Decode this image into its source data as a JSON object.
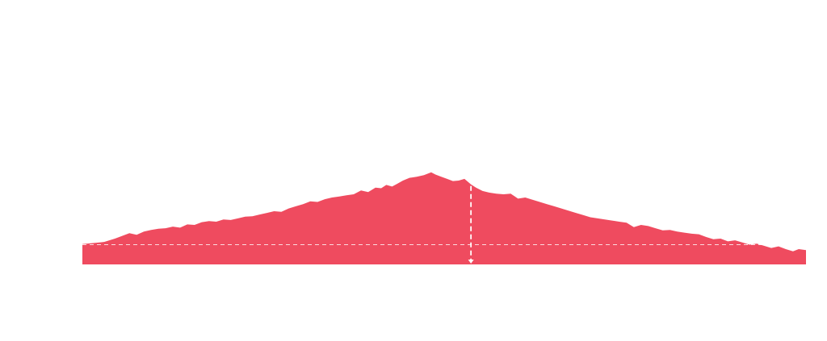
{
  "chart_data": {
    "type": "area",
    "title": "",
    "xlabel": "",
    "ylabel": "",
    "fill_color": "#ef4b5f",
    "guide_color": "#ffffff",
    "grid": false,
    "legend": "none",
    "xlim": [
      0,
      100
    ],
    "ylim": [
      0,
      100
    ],
    "baseline": 18,
    "marker_x": 53.7,
    "series": [
      {
        "x": [
          0,
          1.5,
          3,
          4.5,
          5.5,
          6.5,
          7.5,
          8.5,
          9.5,
          10.5,
          11.5,
          12.5,
          13.5,
          14.5,
          15.5,
          16.5,
          17.5,
          18.5,
          19.5,
          20.5,
          21.5,
          22.5,
          23.5,
          24.5,
          25.5,
          26.5,
          27.5,
          28.5,
          29.5,
          30.5,
          31.5,
          32.5,
          33.5,
          34.5,
          35.5,
          36.5,
          37.5,
          38.5,
          39.5,
          40.5,
          41.3,
          42,
          42.8,
          43.5,
          44.3,
          45.2,
          46.2,
          47.2,
          48.2,
          48.8,
          49.6,
          50.4,
          51.2,
          52,
          52.8,
          53.7,
          54.4,
          55.3,
          56.2,
          57.2,
          58.2,
          59.2,
          60.2,
          61.2,
          62.2,
          63.2,
          64.2,
          65.2,
          66.2,
          67.2,
          68.2,
          69.2,
          70.2,
          71.2,
          72.2,
          73.2,
          74.2,
          75.2,
          76.2,
          77.2,
          78.2,
          79.2,
          80.2,
          81.2,
          82.2,
          83.2,
          84.2,
          85.2,
          86.2,
          87.2,
          88.2,
          89.2,
          90.2,
          91.2,
          92.2,
          93.2,
          94.2,
          95.2,
          96.2,
          97.2,
          98.2,
          99,
          100
        ],
        "y": [
          18.5,
          19.5,
          20.5,
          23.5,
          26,
          28.5,
          27,
          30,
          31.5,
          32.5,
          33,
          34.5,
          33.5,
          36.5,
          36,
          38.5,
          39.5,
          39,
          41,
          40.5,
          42,
          43.5,
          44,
          45.5,
          47,
          48.5,
          48,
          51,
          53,
          55,
          57.5,
          57,
          59.5,
          61,
          62,
          63,
          64,
          67.5,
          66,
          70,
          69.5,
          72.5,
          71,
          73.5,
          76.5,
          79,
          80,
          81.5,
          84,
          82,
          80,
          78,
          76,
          76.5,
          78,
          73,
          70,
          67,
          65.5,
          64.5,
          64,
          64.5,
          60,
          61,
          59,
          57,
          55,
          53,
          51,
          49,
          47,
          45,
          43,
          42,
          41,
          40,
          39,
          38,
          34,
          36,
          35,
          33,
          31,
          31.5,
          30,
          29,
          28,
          27.5,
          25,
          23,
          23.5,
          21,
          22,
          20,
          18,
          19,
          17,
          15,
          16.5,
          14,
          12,
          14,
          13
        ]
      }
    ]
  }
}
